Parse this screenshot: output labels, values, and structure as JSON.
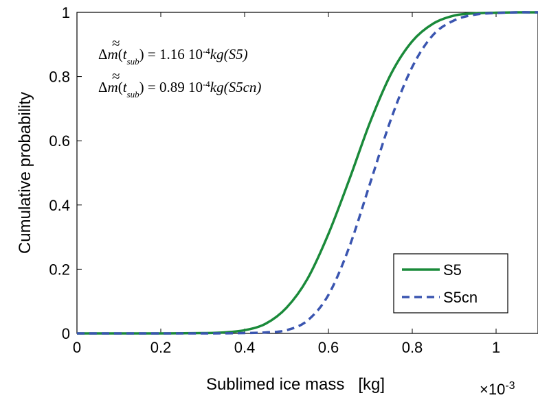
{
  "chart_data": {
    "type": "line",
    "xlabel": "Sublimed ice mass   [kg]",
    "ylabel": "Cumulative probability",
    "x_multiplier": "×10",
    "x_multiplier_exp": "-3",
    "xlim": [
      0,
      1.1
    ],
    "ylim": [
      0,
      1
    ],
    "xticks": [
      0,
      0.2,
      0.4,
      0.6,
      0.8,
      1
    ],
    "xtick_labels": [
      "0",
      "0.2",
      "0.4",
      "0.6",
      "0.8",
      "1"
    ],
    "yticks": [
      0,
      0.2,
      0.4,
      0.6,
      0.8,
      1
    ],
    "ytick_labels": [
      "0",
      "0.2",
      "0.4",
      "0.6",
      "0.8",
      "1"
    ],
    "grid": false,
    "legend_position": "bottom-right",
    "series": [
      {
        "name": "S5",
        "color": "#1a8a3a",
        "style": "solid",
        "x": [
          0,
          0.2,
          0.3,
          0.35,
          0.4,
          0.45,
          0.5,
          0.55,
          0.6,
          0.65,
          0.7,
          0.75,
          0.8,
          0.85,
          0.9,
          0.95,
          1.0,
          1.05,
          1.1
        ],
        "y": [
          0,
          0,
          0.001,
          0.003,
          0.01,
          0.03,
          0.08,
          0.17,
          0.31,
          0.48,
          0.66,
          0.81,
          0.91,
          0.965,
          0.99,
          0.997,
          0.999,
          1.0,
          1.0
        ]
      },
      {
        "name": "S5cn",
        "color": "#3a55b0",
        "style": "dashed",
        "x": [
          0,
          0.3,
          0.4,
          0.45,
          0.5,
          0.55,
          0.6,
          0.65,
          0.7,
          0.75,
          0.8,
          0.85,
          0.9,
          0.95,
          1.0,
          1.05,
          1.1
        ],
        "y": [
          0,
          0,
          0.001,
          0.003,
          0.01,
          0.04,
          0.12,
          0.27,
          0.47,
          0.67,
          0.83,
          0.93,
          0.975,
          0.993,
          0.998,
          1.0,
          1.0
        ]
      }
    ],
    "annotations": [
      {
        "value": "1.16",
        "exp": "-4",
        "unit": "kg",
        "case": "(S5)"
      },
      {
        "value": "0.89",
        "exp": "-4",
        "unit": "kg",
        "case": "(S5cn)"
      }
    ]
  }
}
